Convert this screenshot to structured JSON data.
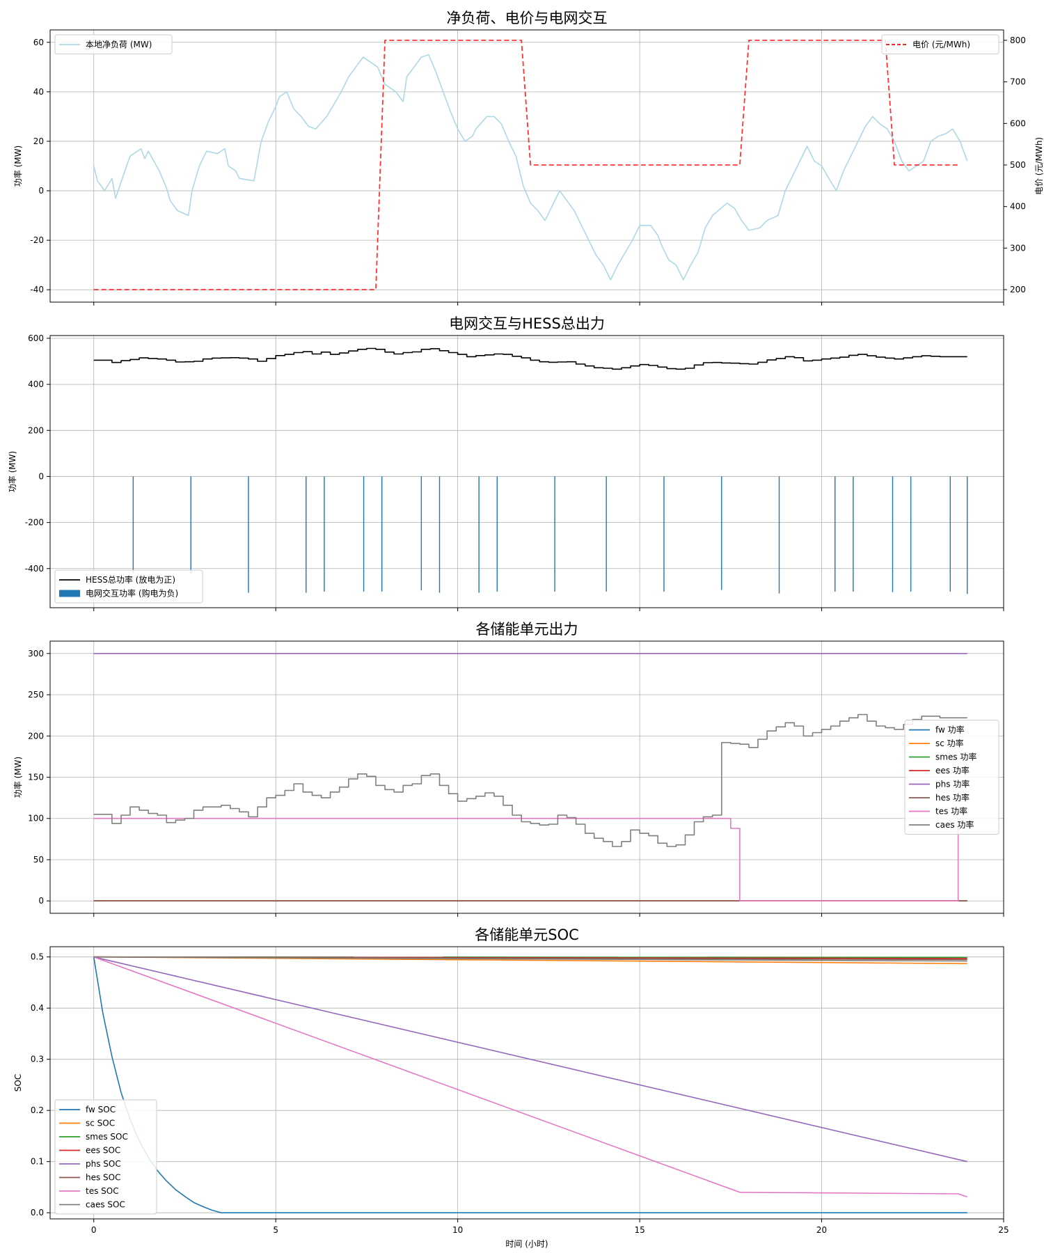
{
  "chart_data": [
    {
      "type": "line",
      "title": "净负荷、电价与电网交互",
      "xlabel": "",
      "ylabel": "功率 (MW)",
      "y2label": "电价 (元/MWh)",
      "xlim": [
        -1.2,
        25.0
      ],
      "ylim": [
        -45,
        65
      ],
      "y2lim": [
        170,
        825
      ],
      "xticks": [
        0,
        5,
        10,
        15,
        20,
        25
      ],
      "yticks": [
        -40,
        -20,
        0,
        20,
        40,
        60
      ],
      "y2ticks": [
        200,
        300,
        400,
        500,
        600,
        700,
        800
      ],
      "grid": true,
      "legend": "top-left",
      "legend2": "top-right",
      "series": [
        {
          "name": "本地净负荷 (MW)",
          "axis": "left",
          "color": "#add8e6",
          "x": [
            0,
            0.1,
            0.3,
            0.5,
            0.6,
            0.9,
            1.0,
            1.3,
            1.4,
            1.5,
            1.8,
            2.0,
            2.1,
            2.3,
            2.6,
            2.7,
            2.9,
            3.1,
            3.4,
            3.6,
            3.7,
            3.9,
            4.0,
            4.4,
            4.6,
            4.8,
            5.0,
            5.1,
            5.3,
            5.5,
            5.7,
            5.9,
            6.1,
            6.4,
            6.6,
            6.8,
            7.0,
            7.2,
            7.4,
            7.6,
            7.8,
            8.0,
            8.3,
            8.5,
            8.6,
            8.8,
            9.0,
            9.2,
            9.4,
            9.6,
            9.8,
            10.0,
            10.2,
            10.4,
            10.5,
            10.8,
            11.0,
            11.2,
            11.4,
            11.6,
            11.8,
            12.0,
            12.2,
            12.4,
            12.6,
            12.8,
            13.0,
            13.2,
            13.4,
            13.6,
            13.8,
            14.0,
            14.2,
            14.4,
            14.6,
            14.8,
            15.0,
            15.3,
            15.5,
            15.6,
            15.8,
            16.0,
            16.2,
            16.4,
            16.6,
            16.8,
            17.0,
            17.4,
            17.6,
            17.8,
            18.0,
            18.3,
            18.5,
            18.8,
            19.0,
            19.4,
            19.6,
            19.8,
            20.0,
            20.2,
            20.4,
            20.6,
            20.8,
            21.0,
            21.2,
            21.4,
            21.6,
            21.8,
            22.0,
            22.2,
            22.4,
            22.6,
            22.8,
            23.0,
            23.2,
            23.4,
            23.6,
            23.8,
            24.0
          ],
          "values": [
            10,
            4,
            0,
            5,
            -3,
            10,
            14,
            17,
            13,
            16,
            8,
            1,
            -4,
            -8,
            -10,
            0,
            10,
            16,
            15,
            17,
            10,
            8,
            5,
            4,
            20,
            28,
            34,
            38,
            40,
            33,
            30,
            26,
            25,
            30,
            35,
            40,
            46,
            50,
            54,
            52,
            50,
            43,
            40,
            36,
            46,
            50,
            54,
            55,
            48,
            40,
            32,
            25,
            20,
            22,
            25,
            30,
            30,
            27,
            20,
            14,
            2,
            -5,
            -8,
            -12,
            -6,
            0,
            -4,
            -8,
            -14,
            -20,
            -26,
            -30,
            -36,
            -30,
            -25,
            -20,
            -14,
            -14,
            -18,
            -22,
            -28,
            -30,
            -36,
            -30,
            -25,
            -15,
            -10,
            -5,
            -7,
            -12,
            -16,
            -15,
            -12,
            -10,
            0,
            12,
            18,
            12,
            10,
            5,
            0,
            8,
            14,
            20,
            26,
            30,
            27,
            25,
            20,
            12,
            8,
            10,
            12,
            20,
            22,
            23,
            25,
            20,
            12
          ]
        },
        {
          "name": "电价 (元/MWh)",
          "axis": "right",
          "color": "#ff0000",
          "dashed": true,
          "x": [
            0,
            7.75,
            8.0,
            11.75,
            12.0,
            17.75,
            18.0,
            21.75,
            22.0,
            23.75
          ],
          "values": [
            200,
            200,
            800,
            800,
            500,
            500,
            800,
            800,
            500,
            500
          ]
        }
      ]
    },
    {
      "type": "line",
      "title": "电网交互与HESS总出力",
      "xlabel": "",
      "ylabel": "功率 (MW)",
      "xlim": [
        -1.2,
        25.0
      ],
      "ylim": [
        -570,
        612
      ],
      "xticks": [
        0,
        5,
        10,
        15,
        20,
        25
      ],
      "yticks": [
        -400,
        -200,
        0,
        200,
        400,
        600
      ],
      "grid": true,
      "legend": "bottom-left",
      "series": [
        {
          "name": "HESS总功率 (放电为正)",
          "type": "step",
          "color": "#000000",
          "x": [
            0,
            0.5,
            0.75,
            1.0,
            1.25,
            1.5,
            1.75,
            2.0,
            2.25,
            2.5,
            2.75,
            3.0,
            3.25,
            3.5,
            3.75,
            4.0,
            4.25,
            4.5,
            4.75,
            5.0,
            5.25,
            5.5,
            5.75,
            6.0,
            6.25,
            6.5,
            6.75,
            7.0,
            7.25,
            7.5,
            7.75,
            8.0,
            8.25,
            8.5,
            8.75,
            9.0,
            9.25,
            9.5,
            9.75,
            10.0,
            10.25,
            10.5,
            10.75,
            11.0,
            11.25,
            11.5,
            11.75,
            12.0,
            12.25,
            12.5,
            12.75,
            13.0,
            13.25,
            13.5,
            13.75,
            14.0,
            14.25,
            14.5,
            14.75,
            15.0,
            15.25,
            15.5,
            15.75,
            16.0,
            16.25,
            16.5,
            16.75,
            17.0,
            17.25,
            17.5,
            17.75,
            18.0,
            18.25,
            18.5,
            18.75,
            19.0,
            19.25,
            19.5,
            19.75,
            20.0,
            20.25,
            20.5,
            20.75,
            21.0,
            21.25,
            21.5,
            21.75,
            22.0,
            22.25,
            22.5,
            22.75,
            23.0,
            23.25,
            23.5,
            23.75,
            24.0
          ],
          "values": [
            505,
            495,
            503,
            508,
            515,
            512,
            510,
            505,
            497,
            498,
            500,
            510,
            514,
            515,
            516,
            514,
            510,
            500,
            512,
            525,
            530,
            538,
            542,
            532,
            540,
            530,
            536,
            545,
            552,
            556,
            552,
            540,
            532,
            538,
            541,
            552,
            555,
            546,
            538,
            530,
            520,
            525,
            528,
            532,
            530,
            522,
            515,
            505,
            498,
            496,
            497,
            498,
            488,
            480,
            472,
            470,
            466,
            472,
            480,
            486,
            482,
            475,
            468,
            466,
            470,
            484,
            494,
            495,
            493,
            492,
            490,
            488,
            496,
            506,
            512,
            520,
            516,
            502,
            505,
            510,
            514,
            518,
            526,
            530,
            524,
            518,
            514,
            510,
            515,
            520,
            524,
            522,
            520,
            520,
            520,
            520
          ]
        },
        {
          "name": "电网交互功率 (购电为负)",
          "type": "bar",
          "color": "#1f77b4",
          "x": [
            1.083,
            2.667,
            4.25,
            5.833,
            6.333,
            7.417,
            7.917,
            9.0,
            9.5,
            10.583,
            11.083,
            12.667,
            14.083,
            15.667,
            17.25,
            18.833,
            20.367,
            20.867,
            21.95,
            22.45,
            23.533,
            24.0
          ],
          "values": [
            -420,
            -420,
            -505,
            -505,
            -500,
            -500,
            -500,
            -495,
            -505,
            -505,
            -500,
            -500,
            -500,
            -500,
            -493,
            -508,
            -500,
            -500,
            -502,
            -500,
            -500,
            -510
          ]
        }
      ]
    },
    {
      "type": "line",
      "title": "各储能单元出力",
      "xlabel": "",
      "ylabel": "功率 (MW)",
      "xlim": [
        -1.2,
        25.0
      ],
      "ylim": [
        -15,
        315
      ],
      "xticks": [
        0,
        5,
        10,
        15,
        20,
        25
      ],
      "yticks": [
        0,
        50,
        100,
        150,
        200,
        250,
        300
      ],
      "grid": true,
      "legend": "center-right",
      "series": [
        {
          "name": "fw 功率",
          "color": "#1f77b4",
          "x": [
            0,
            24
          ],
          "values": [
            0,
            0
          ]
        },
        {
          "name": "sc 功率",
          "color": "#ff7f0e",
          "x": [
            0,
            24
          ],
          "values": [
            0,
            0
          ]
        },
        {
          "name": "smes 功率",
          "color": "#2ca02c",
          "x": [
            0,
            24
          ],
          "values": [
            0,
            0
          ]
        },
        {
          "name": "ees 功率",
          "color": "#d62728",
          "x": [
            0,
            24
          ],
          "values": [
            0,
            0
          ]
        },
        {
          "name": "phs 功率",
          "color": "#9467bd",
          "x": [
            0,
            24
          ],
          "values": [
            300,
            300
          ]
        },
        {
          "name": "hes 功率",
          "color": "#8c564b",
          "x": [
            0,
            24
          ],
          "values": [
            0,
            0
          ]
        },
        {
          "name": "tes 功率",
          "color": "#e377c2",
          "x": [
            0,
            17.5,
            17.5,
            17.75,
            17.75,
            23.75,
            23.75,
            24.0
          ],
          "values": [
            100,
            100,
            88,
            88,
            0,
            0,
            100,
            100
          ]
        },
        {
          "name": "caes 功率",
          "type": "step",
          "color": "#7f7f7f",
          "x": [
            0,
            0.5,
            0.75,
            1.0,
            1.25,
            1.5,
            1.75,
            2.0,
            2.25,
            2.5,
            2.75,
            3.0,
            3.25,
            3.5,
            3.75,
            4.0,
            4.25,
            4.5,
            4.75,
            5.0,
            5.25,
            5.5,
            5.75,
            6.0,
            6.25,
            6.5,
            6.75,
            7.0,
            7.25,
            7.5,
            7.75,
            8.0,
            8.25,
            8.5,
            8.75,
            9.0,
            9.25,
            9.5,
            9.75,
            10.0,
            10.25,
            10.5,
            10.75,
            11.0,
            11.25,
            11.5,
            11.75,
            12.0,
            12.25,
            12.5,
            12.75,
            13.0,
            13.25,
            13.5,
            13.75,
            14.0,
            14.25,
            14.5,
            14.75,
            15.0,
            15.25,
            15.5,
            15.75,
            16.0,
            16.25,
            16.5,
            16.75,
            17.0,
            17.25,
            17.5,
            17.75,
            18.0,
            18.25,
            18.5,
            18.75,
            19.0,
            19.25,
            19.5,
            19.75,
            20.0,
            20.25,
            20.5,
            20.75,
            21.0,
            21.25,
            21.5,
            21.75,
            22.0,
            22.25,
            22.5,
            22.75,
            23.0,
            23.25,
            23.5,
            23.75,
            24.0
          ],
          "values": [
            105,
            94,
            104,
            114,
            110,
            106,
            104,
            95,
            98,
            100,
            110,
            114,
            114,
            116,
            112,
            108,
            102,
            114,
            125,
            128,
            134,
            142,
            132,
            128,
            125,
            132,
            138,
            148,
            154,
            151,
            140,
            135,
            132,
            140,
            142,
            152,
            154,
            140,
            130,
            121,
            124,
            127,
            131,
            127,
            116,
            104,
            96,
            94,
            92,
            93,
            104,
            101,
            93,
            82,
            76,
            72,
            66,
            72,
            86,
            82,
            79,
            70,
            66,
            68,
            80,
            96,
            102,
            104,
            192,
            191,
            190,
            186,
            196,
            206,
            211,
            216,
            212,
            200,
            204,
            208,
            212,
            218,
            222,
            226,
            218,
            212,
            210,
            208,
            214,
            220,
            224,
            224,
            222,
            222,
            222,
            222
          ]
        }
      ]
    },
    {
      "type": "line",
      "title": "各储能单元SOC",
      "xlabel": "时间 (小时)",
      "ylabel": "SOC",
      "xlim": [
        -1.2,
        25.0
      ],
      "ylim": [
        -0.012,
        0.52
      ],
      "xticks": [
        0,
        5,
        10,
        15,
        20,
        25
      ],
      "yticks": [
        0.0,
        0.1,
        0.2,
        0.3,
        0.4,
        0.5
      ],
      "grid": true,
      "legend": "bottom-left",
      "series": [
        {
          "name": "fw SOC",
          "color": "#1f77b4",
          "x": [
            0,
            0.25,
            0.5,
            0.75,
            1.0,
            1.25,
            1.5,
            1.75,
            2.0,
            2.25,
            2.5,
            2.75,
            3.0,
            3.25,
            3.5,
            24
          ],
          "values": [
            0.5,
            0.39,
            0.305,
            0.235,
            0.182,
            0.14,
            0.108,
            0.082,
            0.062,
            0.045,
            0.032,
            0.02,
            0.012,
            0.005,
            0.0,
            0.0
          ]
        },
        {
          "name": "sc SOC",
          "color": "#ff7f0e",
          "x": [
            0,
            24
          ],
          "values": [
            0.5,
            0.487
          ]
        },
        {
          "name": "smes SOC",
          "color": "#2ca02c",
          "x": [
            0,
            24
          ],
          "values": [
            0.5,
            0.499
          ]
        },
        {
          "name": "ees SOC",
          "color": "#d62728",
          "x": [
            0,
            24
          ],
          "values": [
            0.5,
            0.497
          ]
        },
        {
          "name": "phs SOC",
          "color": "#9467bd",
          "x": [
            0,
            24
          ],
          "values": [
            0.5,
            0.1
          ]
        },
        {
          "name": "hes SOC",
          "color": "#8c564b",
          "x": [
            0,
            24
          ],
          "values": [
            0.5,
            0.495
          ]
        },
        {
          "name": "tes SOC",
          "color": "#e377c2",
          "x": [
            0,
            17.75,
            23.75,
            24.0
          ],
          "values": [
            0.5,
            0.04,
            0.037,
            0.031
          ]
        },
        {
          "name": "caes SOC",
          "color": "#7f7f7f",
          "x": [
            0,
            24
          ],
          "values": [
            0.5,
            0.492
          ]
        }
      ]
    }
  ]
}
